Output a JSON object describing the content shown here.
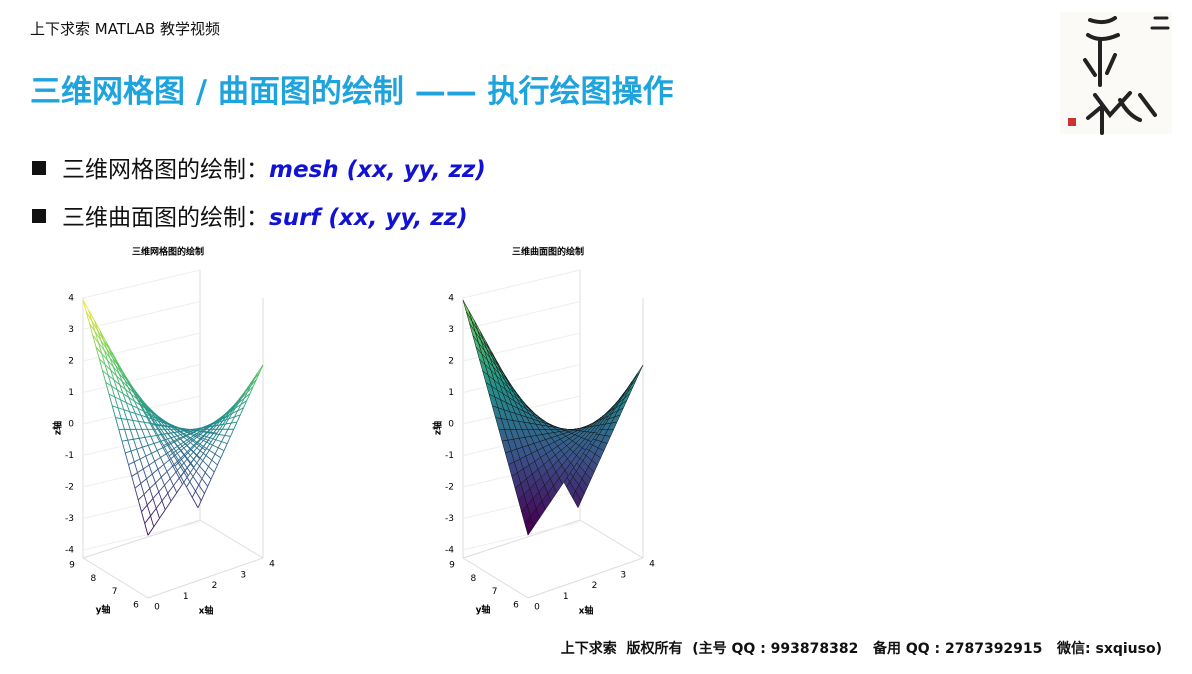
{
  "header": {
    "course": "上下求索 MATLAB 教学视频",
    "title": "三维网格图 / 曲面图的绘制 —— 执行绘图操作"
  },
  "bullets": [
    {
      "label": "三维网格图的绘制：",
      "code": "mesh (xx, yy, zz)"
    },
    {
      "label": "三维曲面图的绘制：",
      "code": "surf (xx, yy, zz)"
    }
  ],
  "plots": [
    {
      "title": "三维网格图的绘制",
      "style": "mesh",
      "zlabel": "z轴",
      "ylabel": "y轴",
      "xlabel": "x轴",
      "zticks": [
        4,
        3,
        2,
        1,
        0,
        -1,
        -2,
        -3,
        -4
      ],
      "yticks": [
        9,
        8,
        7,
        6
      ],
      "xticks": [
        0,
        1,
        2,
        3,
        4
      ]
    },
    {
      "title": "三维曲面图的绘制",
      "style": "surf",
      "zlabel": "z轴",
      "ylabel": "y轴",
      "xlabel": "x轴",
      "zticks": [
        4,
        3,
        2,
        1,
        0,
        -1,
        -2,
        -3,
        -4
      ],
      "yticks": [
        9,
        8,
        7,
        6
      ],
      "xticks": [
        0,
        1,
        2,
        3,
        4
      ]
    }
  ],
  "footer": "上下求索  版权所有  (主号 QQ : 993878382   备用 QQ : 2787392915   微信: sxqiuso)"
}
